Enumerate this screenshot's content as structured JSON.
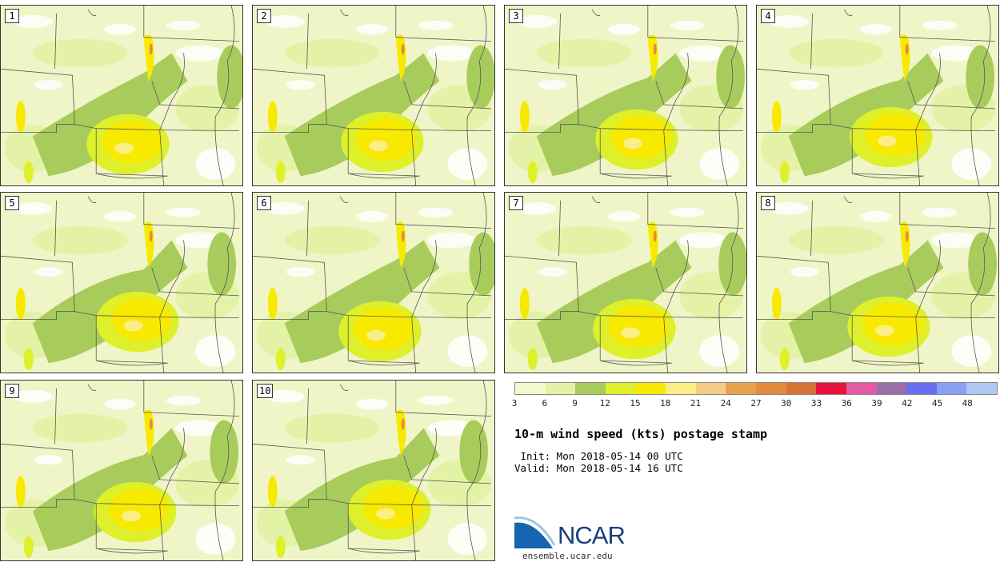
{
  "panels": [
    "1",
    "2",
    "3",
    "4",
    "5",
    "6",
    "7",
    "8",
    "9",
    "10"
  ],
  "colorbar": {
    "colors": [
      "#f3f8d0",
      "#e4f2a7",
      "#a8cc5c",
      "#def02a",
      "#f8e900",
      "#fbee85",
      "#f5cc85",
      "#eaa14c",
      "#e38a3c",
      "#d97236",
      "#e8103c",
      "#e45ba4",
      "#9a6ea8",
      "#6b6ef2",
      "#8aa1f2",
      "#b0c6f5"
    ],
    "ticks": [
      "3",
      "6",
      "9",
      "12",
      "15",
      "18",
      "21",
      "24",
      "27",
      "30",
      "33",
      "36",
      "39",
      "42",
      "45",
      "48"
    ]
  },
  "title": "10-m wind speed (kts) postage stamp",
  "init": " Init: Mon 2018-05-14 00 UTC",
  "valid": "Valid: Mon 2018-05-14 16 UTC",
  "logo": {
    "name": "NCAR",
    "url": "ensemble.ucar.edu"
  }
}
